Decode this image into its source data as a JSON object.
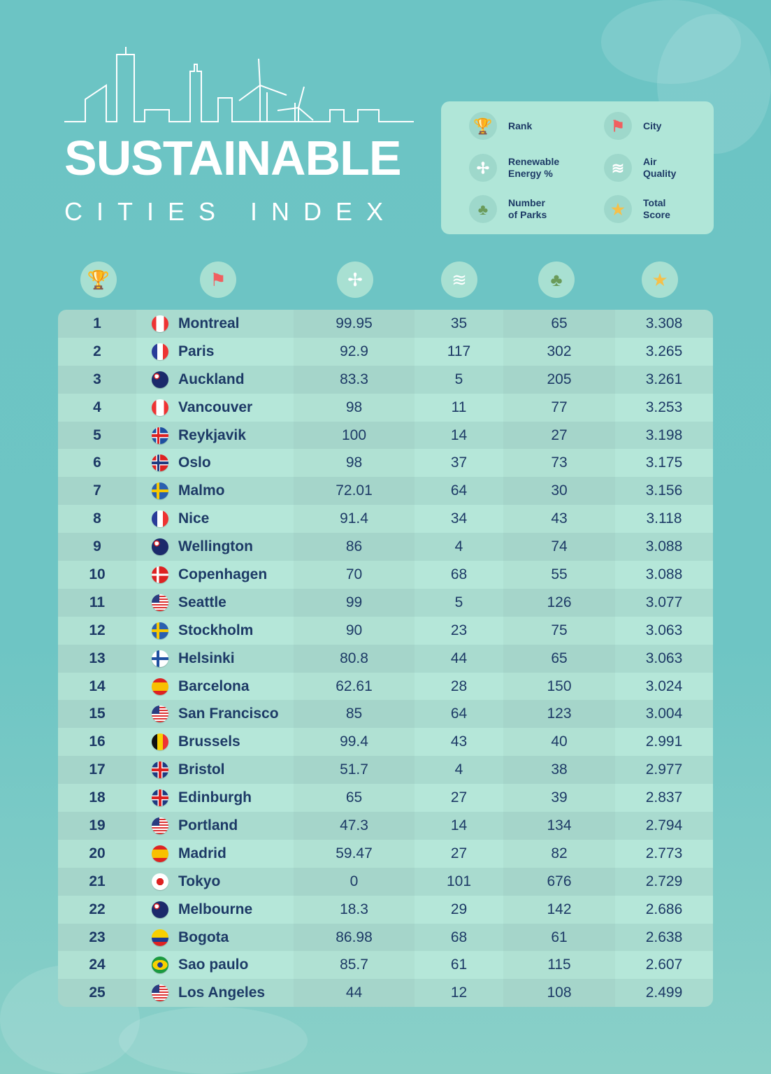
{
  "header": {
    "title": "SUSTAINABLE",
    "subtitle": "CITIES INDEX"
  },
  "legend": [
    {
      "icon": "trophy-icon",
      "label1": "Rank",
      "label2": ""
    },
    {
      "icon": "flag-icon",
      "label1": "City",
      "label2": ""
    },
    {
      "icon": "wind-turbine-icon",
      "label1": "Renewable",
      "label2": "Energy %"
    },
    {
      "icon": "wind-air-icon",
      "label1": "Air",
      "label2": "Quality"
    },
    {
      "icon": "trees-icon",
      "label1": "Number",
      "label2": "of Parks"
    },
    {
      "icon": "star-icon",
      "label1": "Total",
      "label2": "Score"
    }
  ],
  "colors": {
    "text": "#1d3a66",
    "background": "#6cc4c4",
    "legend_bg": "#b0e6d8",
    "row_dark": "#a9dbcf",
    "row_light": "#b5e7d9"
  },
  "chart_data": {
    "type": "table",
    "columns": [
      "Rank",
      "City",
      "Renewable Energy %",
      "Air Quality",
      "Number of Parks",
      "Total Score"
    ],
    "rows": [
      [
        1,
        "Montreal",
        "99.95",
        "35",
        "65",
        "3.308",
        "ca"
      ],
      [
        2,
        "Paris",
        "92.9",
        "117",
        "302",
        "3.265",
        "fr"
      ],
      [
        3,
        "Auckland",
        "83.3",
        "5",
        "205",
        "3.261",
        "nz"
      ],
      [
        4,
        "Vancouver",
        "98",
        "11",
        "77",
        "3.253",
        "ca"
      ],
      [
        5,
        "Reykjavik",
        "100",
        "14",
        "27",
        "3.198",
        "is"
      ],
      [
        6,
        "Oslo",
        "98",
        "37",
        "73",
        "3.175",
        "no"
      ],
      [
        7,
        "Malmo",
        "72.01",
        "64",
        "30",
        "3.156",
        "se"
      ],
      [
        8,
        "Nice",
        "91.4",
        "34",
        "43",
        "3.118",
        "fr"
      ],
      [
        9,
        "Wellington",
        "86",
        "4",
        "74",
        "3.088",
        "nz"
      ],
      [
        10,
        "Copenhagen",
        "70",
        "68",
        "55",
        "3.088",
        "dk"
      ],
      [
        11,
        "Seattle",
        "99",
        "5",
        "126",
        "3.077",
        "us"
      ],
      [
        12,
        "Stockholm",
        "90",
        "23",
        "75",
        "3.063",
        "se"
      ],
      [
        13,
        "Helsinki",
        "80.8",
        "44",
        "65",
        "3.063",
        "fi"
      ],
      [
        14,
        "Barcelona",
        "62.61",
        "28",
        "150",
        "3.024",
        "es"
      ],
      [
        15,
        "San Francisco",
        "85",
        "64",
        "123",
        "3.004",
        "us"
      ],
      [
        16,
        "Brussels",
        "99.4",
        "43",
        "40",
        "2.991",
        "be"
      ],
      [
        17,
        "Bristol",
        "51.7",
        "4",
        "38",
        "2.977",
        "gb"
      ],
      [
        18,
        "Edinburgh",
        "65",
        "27",
        "39",
        "2.837",
        "gb"
      ],
      [
        19,
        "Portland",
        "47.3",
        "14",
        "134",
        "2.794",
        "us"
      ],
      [
        20,
        "Madrid",
        "59.47",
        "27",
        "82",
        "2.773",
        "es"
      ],
      [
        21,
        "Tokyo",
        "0",
        "101",
        "676",
        "2.729",
        "jp"
      ],
      [
        22,
        "Melbourne",
        "18.3",
        "29",
        "142",
        "2.686",
        "au"
      ],
      [
        23,
        "Bogota",
        "86.98",
        "68",
        "61",
        "2.638",
        "co"
      ],
      [
        24,
        "Sao paulo",
        "85.7",
        "61",
        "115",
        "2.607",
        "br"
      ],
      [
        25,
        "Los Angeles",
        "44",
        "12",
        "108",
        "2.499",
        "us"
      ]
    ]
  }
}
